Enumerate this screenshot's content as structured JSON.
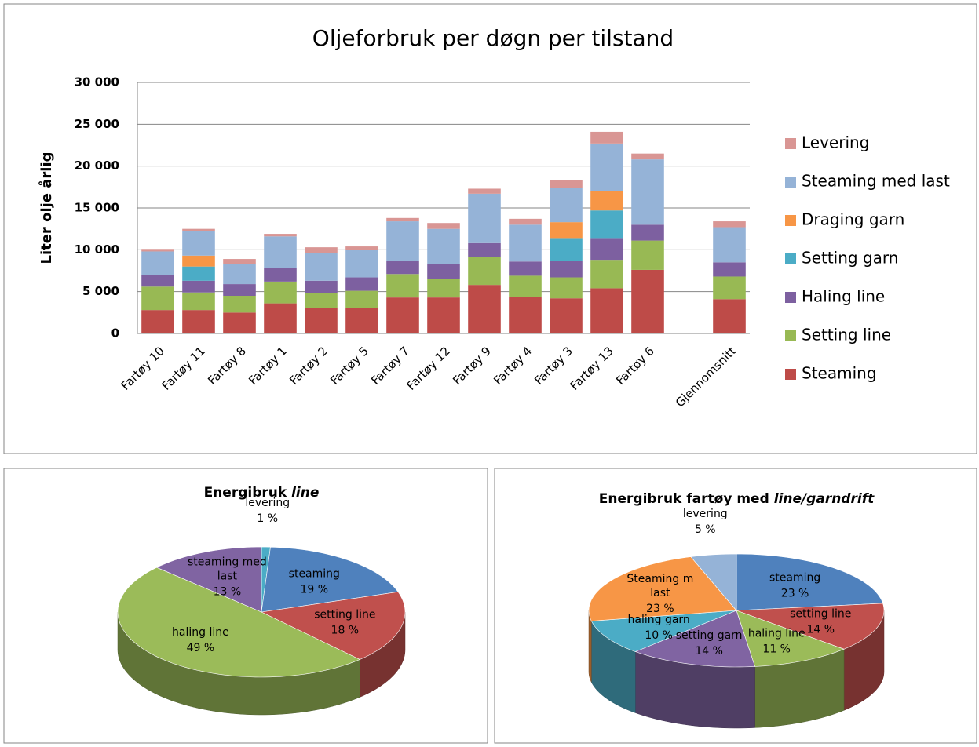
{
  "chart_data": [
    {
      "type": "bar",
      "title": "Oljeforbruk per døgn per tilstand",
      "y_label": "Liter olje årlig",
      "categories": [
        "Fartøy 10",
        "Fartøy 11",
        "Fartøy 8",
        "Fartøy 1",
        "Fartøy 2",
        "Fartøy 5",
        "Fartøy 7",
        "Fartøy 12",
        "Fartøy 9",
        "Fartøy 4",
        "Fartøy 3",
        "Fartøy 13",
        "Fartøy 6",
        null,
        "Gjennomsnitt"
      ],
      "series": [
        {
          "name": "Steaming",
          "color": "#be4b48",
          "values": [
            2800,
            2800,
            2500,
            3600,
            3000,
            3000,
            4300,
            4300,
            5800,
            4400,
            4200,
            5400,
            7600,
            null,
            4100
          ]
        },
        {
          "name": "Setting line",
          "color": "#98b954",
          "values": [
            2800,
            2100,
            2000,
            2600,
            1800,
            2100,
            2800,
            2200,
            3300,
            2500,
            2500,
            3400,
            3500,
            null,
            2700
          ]
        },
        {
          "name": "Haling line",
          "color": "#7d60a0",
          "values": [
            1400,
            1400,
            1400,
            1600,
            1500,
            1600,
            1600,
            1800,
            1700,
            1700,
            2000,
            2600,
            1900,
            null,
            1700
          ]
        },
        {
          "name": "Setting garn",
          "color": "#4bacc6",
          "values": [
            0,
            1700,
            0,
            0,
            0,
            0,
            0,
            0,
            0,
            0,
            2700,
            3300,
            0,
            null,
            0
          ]
        },
        {
          "name": "Draging garn",
          "color": "#f79646",
          "values": [
            0,
            1300,
            0,
            0,
            0,
            0,
            0,
            0,
            0,
            0,
            1900,
            2300,
            0,
            null,
            0
          ]
        },
        {
          "name": "Steaming med last",
          "color": "#95b3d7",
          "values": [
            2800,
            2900,
            2400,
            3800,
            3300,
            3300,
            4700,
            4200,
            5900,
            4400,
            4100,
            5700,
            7800,
            null,
            4200
          ]
        },
        {
          "name": "Levering",
          "color": "#d99694",
          "values": [
            300,
            300,
            600,
            300,
            700,
            400,
            400,
            700,
            600,
            700,
            900,
            1400,
            700,
            null,
            700
          ]
        }
      ],
      "ylim": [
        0,
        30000
      ],
      "yticks": [
        0,
        {
          "value": 5000,
          "label": "5 000"
        },
        {
          "value": 10000,
          "label": "10 000"
        },
        {
          "value": 15000,
          "label": "15 000"
        },
        {
          "value": 20000,
          "label": "20 000"
        },
        {
          "value": 25000,
          "label": "25 000"
        },
        {
          "value": 30000,
          "label": "30 000"
        }
      ],
      "grid": true,
      "legend": "right"
    },
    {
      "type": "pie",
      "title": {
        "text": "Energibruk",
        "emphasis": "line"
      },
      "categories": [
        "levering",
        "steaming",
        "setting line",
        "haling line",
        "steaming med last"
      ],
      "values": [
        1,
        19,
        18,
        49,
        13
      ],
      "value_labels": [
        "1 %",
        "19 %",
        "18 %",
        "49 %",
        "13 %"
      ],
      "colors": [
        "#4bacc6",
        "#4f81bd",
        "#c0504d",
        "#9bbb59",
        "#8064a2"
      ]
    },
    {
      "type": "pie",
      "title": {
        "text": "Energibruk fartøy med",
        "emphasis": "line/garndrift"
      },
      "categories": [
        "steaming",
        "setting line",
        "haling line",
        "setting garn",
        "haling garn",
        "Steaming m last",
        "levering"
      ],
      "values": [
        23,
        14,
        11,
        14,
        10,
        23,
        5
      ],
      "value_labels": [
        "23 %",
        "14 %",
        "11 %",
        "14 %",
        "10 %",
        "23 %",
        "5 %"
      ],
      "colors": [
        "#4f81bd",
        "#c0504d",
        "#9bbb59",
        "#8064a2",
        "#4bacc6",
        "#f79646",
        "#95b3d7"
      ]
    }
  ]
}
